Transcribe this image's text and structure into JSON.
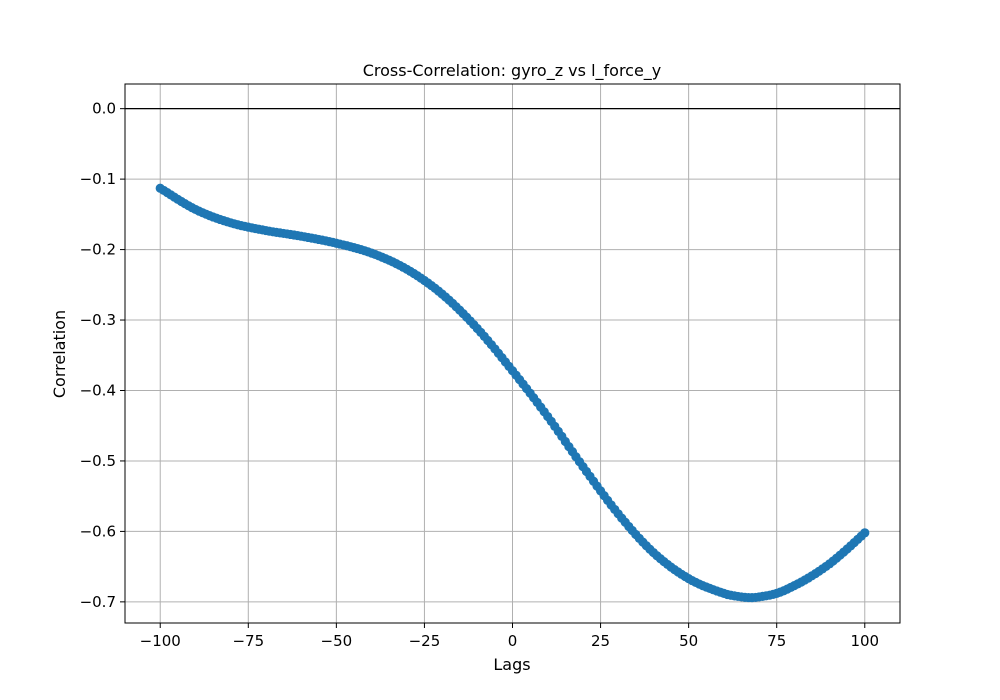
{
  "chart_data": {
    "type": "scatter",
    "title": "Cross-Correlation: gyro_z vs l_force_y",
    "xlabel": "Lags",
    "ylabel": "Correlation",
    "xlim": [
      -110,
      110
    ],
    "ylim": [
      -0.73,
      0.035
    ],
    "grid": true,
    "reference_line": {
      "y": 0.0,
      "color": "#000000"
    },
    "x_ticks": [
      {
        "value": -100,
        "label": "−100"
      },
      {
        "value": -75,
        "label": "−75"
      },
      {
        "value": -50,
        "label": "−50"
      },
      {
        "value": -25,
        "label": "−25"
      },
      {
        "value": 0,
        "label": "0"
      },
      {
        "value": 25,
        "label": "25"
      },
      {
        "value": 50,
        "label": "50"
      },
      {
        "value": 75,
        "label": "75"
      },
      {
        "value": 100,
        "label": "100"
      }
    ],
    "y_ticks": [
      {
        "value": 0.0,
        "label": "0.0"
      },
      {
        "value": -0.1,
        "label": "−0.1"
      },
      {
        "value": -0.2,
        "label": "−0.2"
      },
      {
        "value": -0.3,
        "label": "−0.3"
      },
      {
        "value": -0.4,
        "label": "−0.4"
      },
      {
        "value": -0.5,
        "label": "−0.5"
      },
      {
        "value": -0.6,
        "label": "−0.6"
      },
      {
        "value": -0.7,
        "label": "−0.7"
      }
    ],
    "series": [
      {
        "color": "#1f77b4",
        "x_start": -100,
        "x_end": 100,
        "x_step": 1,
        "anchors_x": [
          -100,
          -90,
          -80,
          -70,
          -60,
          -50,
          -40,
          -30,
          -20,
          -10,
          0,
          10,
          20,
          30,
          40,
          50,
          60,
          65,
          68,
          70,
          75,
          80,
          85,
          90,
          95,
          100
        ],
        "anchors_y": [
          -0.113,
          -0.143,
          -0.162,
          -0.173,
          -0.181,
          -0.191,
          -0.205,
          -0.228,
          -0.263,
          -0.312,
          -0.372,
          -0.437,
          -0.508,
          -0.575,
          -0.63,
          -0.667,
          -0.688,
          -0.693,
          -0.694,
          -0.693,
          -0.688,
          -0.677,
          -0.663,
          -0.646,
          -0.625,
          -0.602
        ]
      }
    ]
  }
}
